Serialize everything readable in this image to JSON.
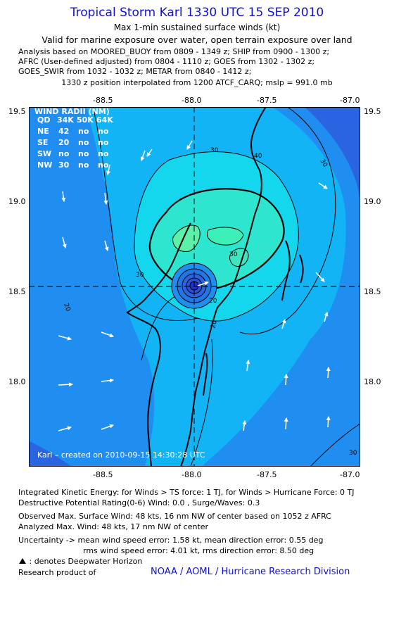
{
  "header": {
    "title": "Tropical Storm Karl 1330 UTC 15 SEP 2010",
    "subtitle1": "Max 1-min sustained surface winds (kt)",
    "subtitle2": "Valid for marine exposure over water, open terrain exposure over land",
    "analysis_lines": [
      "Analysis based on MOORED_BUOY from 0809 - 1349 z; SHIP from 0900 - 1300 z;",
      "AFRC (User-defined adjusted) from 0804 - 1110 z; GOES from 1302 - 1302 z;",
      "GOES_SWIR from 1032 - 1032 z; METAR from 0840 - 1412 z;"
    ],
    "position_line": "1330 z position interpolated from 1200 ATCF_CARQ; mslp = 991.0 mb"
  },
  "axes": {
    "lon_ticks": [
      "-88.5",
      "-88.0",
      "-87.5",
      "-87.0"
    ],
    "lat_ticks": [
      "19.5",
      "19.0",
      "18.5",
      "18.0"
    ]
  },
  "wind_radii": {
    "title": "WIND RADII (NM)",
    "header": [
      "QD",
      "34K",
      "50K",
      "64K"
    ],
    "rows": [
      [
        "NE",
        "42",
        "no",
        "no"
      ],
      [
        "SE",
        "20",
        "no",
        "no"
      ],
      [
        "SW",
        "no",
        "no",
        "no"
      ],
      [
        "NW",
        "30",
        "no",
        "no"
      ]
    ]
  },
  "contour_labels": [
    "30",
    "30",
    "40",
    "30",
    "30",
    "20",
    "20",
    "20",
    "30"
  ],
  "created_label": "Karl – created on 2010-09-15 14:30:28 UTC",
  "footer": {
    "ike": "Integrated Kinetic Energy:  for Winds > TS force: 1 TJ,  for Winds > Hurricane Force: 0 TJ",
    "dpr": "Destructive Potential Rating(0-6)   Wind: 0.0 , Surge/Waves: 0.3",
    "obs_max": "Observed Max. Surface Wind: 48 kts, 16 nm NW of center based on 1052 z AFRC",
    "analyzed_max": "Analyzed Max. Wind: 48 kts, 17 nm NW of center",
    "uncertainty1": "Uncertainty -> mean wind speed error: 1.58 kt,   mean direction error: 0.55 deg",
    "uncertainty2": "rms wind speed error: 4.01 kt,   rms direction error: 8.50 deg",
    "deepwater": ": denotes Deepwater Horizon",
    "research": "Research product of",
    "noaa": "NOAA / AOML / Hurricane Research Division"
  },
  "colors": {
    "title_blue": "#1010d8",
    "field_dark": "#2a64e0",
    "field_mid": "#1f8ef0",
    "field_light": "#12b4f6",
    "field_cyan": "#14d6ec",
    "field_teal": "#2ee6cf",
    "field_green": "#5cf0a8"
  }
}
